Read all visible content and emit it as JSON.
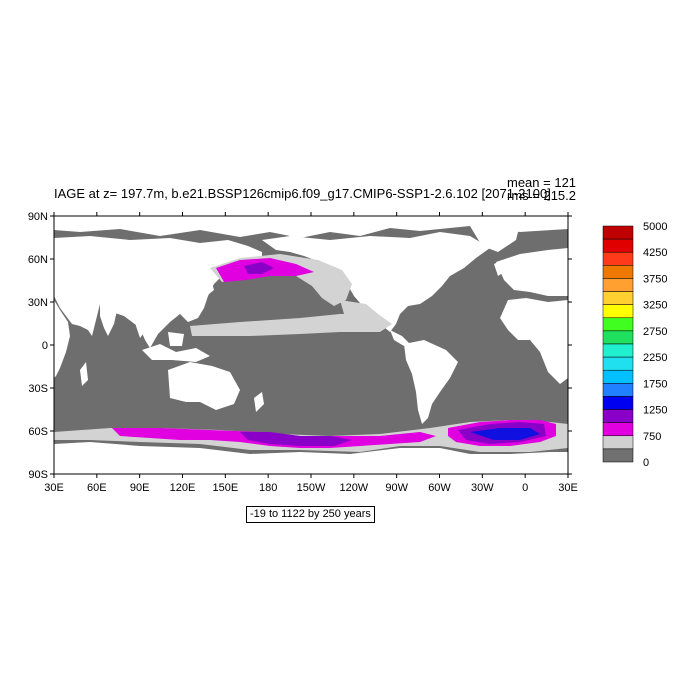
{
  "title": "IAGE at z= 197.7m, b.e21.BSSP126cmip6.f09_g17.CMIP6-SSP1-2.6.102 [2071-2100]",
  "stats": {
    "mean": "mean = 121",
    "rms": "rms = 215.2"
  },
  "range_note": "-19 to 1122 by 250 years",
  "lat_labels": [
    "90N",
    "60N",
    "30N",
    "0",
    "30S",
    "60S",
    "90S"
  ],
  "lon_labels": [
    "30E",
    "60E",
    "90E",
    "120E",
    "150E",
    "180",
    "150W",
    "120W",
    "90W",
    "60W",
    "30W",
    "0",
    "30E"
  ],
  "colorbar": {
    "labels": [
      "5000",
      "4250",
      "3750",
      "3250",
      "2750",
      "2250",
      "1750",
      "1250",
      "750",
      "0"
    ],
    "colors": [
      "#c00000",
      "#e00000",
      "#ff3a1a",
      "#f07800",
      "#ffa030",
      "#ffd030",
      "#ffff00",
      "#40ff20",
      "#20e060",
      "#20f0d0",
      "#20e0f0",
      "#00c0ff",
      "#2080ff",
      "#0000f0",
      "#8a00c8",
      "#e000e0",
      "#d0d0d0",
      "#707070"
    ]
  },
  "map_colors": {
    "land": "#ffffff",
    "ocean": "#6e6e6e",
    "band_0_250": "#d3d3d3",
    "band_500_750": "#e000e0",
    "band_750_1000": "#8a00c8",
    "band_1000_1250": "#1010e0"
  }
}
